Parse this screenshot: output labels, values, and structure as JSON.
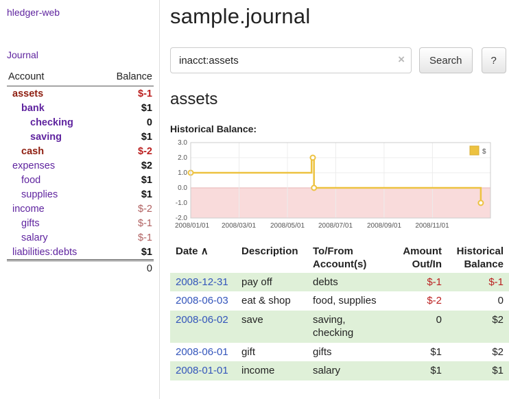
{
  "colors": {
    "link_purple": "#5f249f",
    "negative_account_red": "#8f2012",
    "negative_amount_red": "#bb2020",
    "soft_negative_red": "#b06060",
    "date_link_blue": "#3355bb",
    "row_stripe_green": "#dff0d8",
    "chart_series_gold": "#edc240",
    "chart_negative_region_pink": "#f9dbdb"
  },
  "sidebar": {
    "app_title": "hledger-web",
    "journal_label": "Journal",
    "account_header": "Account",
    "balance_header": "Balance",
    "accounts": [
      {
        "name": "assets",
        "balance": "$-1"
      },
      {
        "name": "bank",
        "balance": "$1"
      },
      {
        "name": "checking",
        "balance": "0"
      },
      {
        "name": "saving",
        "balance": "$1"
      },
      {
        "name": "cash",
        "balance": "$-2"
      },
      {
        "name": "expenses",
        "balance": "$2"
      },
      {
        "name": "food",
        "balance": "$1"
      },
      {
        "name": "supplies",
        "balance": "$1"
      },
      {
        "name": "income",
        "balance": "$-2"
      },
      {
        "name": "gifts",
        "balance": "$-1"
      },
      {
        "name": "salary",
        "balance": "$-1"
      },
      {
        "name": "liabilities:debts",
        "balance": "$1"
      }
    ],
    "total": "0"
  },
  "main": {
    "title": "sample.journal",
    "search": {
      "value": "inacct:assets",
      "clear_icon": "×",
      "button_label": "Search",
      "help_label": "?"
    },
    "account_heading": "assets",
    "chart": {
      "title": "Historical Balance:",
      "type": "line",
      "legend": "$",
      "xlim": [
        0,
        12.4
      ],
      "ylim": [
        -2,
        3
      ],
      "y_ticks": [
        "3.0",
        "2.0",
        "1.0",
        "0.0",
        "-1.0",
        "-2.0"
      ],
      "x_ticks": [
        "2008/01/01",
        "2008/03/01",
        "2008/05/01",
        "2008/07/01",
        "2008/09/01",
        "2008/11/01"
      ],
      "points": [
        [
          0,
          1
        ],
        [
          5,
          1
        ],
        [
          5,
          2
        ],
        [
          5.1,
          2
        ],
        [
          5.1,
          0
        ],
        [
          12,
          0
        ],
        [
          12,
          -1
        ]
      ],
      "markers": [
        [
          0,
          1
        ],
        [
          5.05,
          2
        ],
        [
          5.1,
          0
        ],
        [
          12,
          -1
        ]
      ]
    },
    "register": {
      "headers": {
        "date": "Date",
        "sort_icon": "∧",
        "description": "Description",
        "account_line1": "To/From",
        "account_line2": "Account(s)",
        "amount_line1": "Amount",
        "amount_line2": "Out/In",
        "balance_line1": "Historical",
        "balance_line2": "Balance"
      },
      "rows": [
        {
          "date": "2008-12-31",
          "description": "pay off",
          "accounts": "debts",
          "amount": "$-1",
          "balance": "$-1"
        },
        {
          "date": "2008-06-03",
          "description": "eat & shop",
          "accounts": "food, supplies",
          "amount": "$-2",
          "balance": "0"
        },
        {
          "date": "2008-06-02",
          "description": "save",
          "accounts": "saving, checking",
          "amount": "0",
          "balance": "$2"
        },
        {
          "date": "2008-06-01",
          "description": "gift",
          "accounts": "gifts",
          "amount": "$1",
          "balance": "$2"
        },
        {
          "date": "2008-01-01",
          "description": "income",
          "accounts": "salary",
          "amount": "$1",
          "balance": "$1"
        }
      ]
    }
  }
}
